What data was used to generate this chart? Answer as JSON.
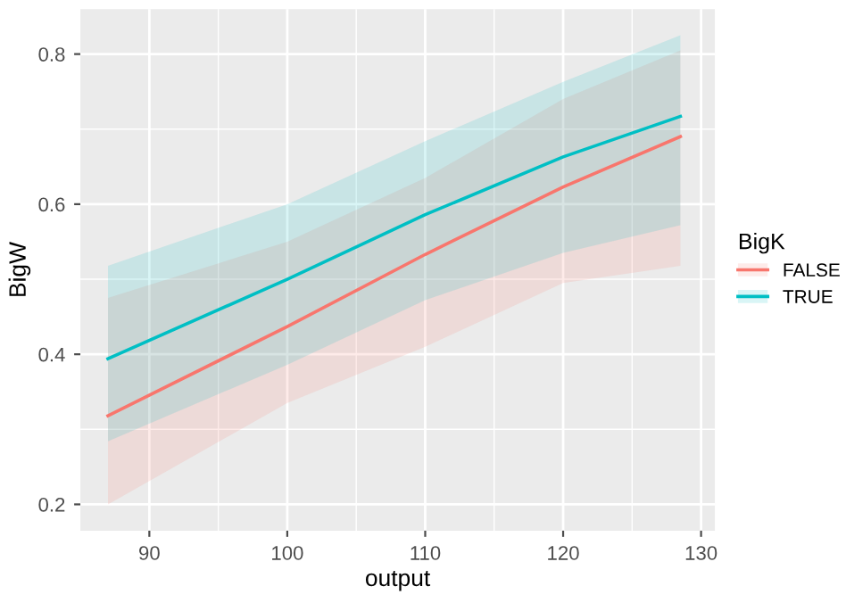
{
  "chart_data": {
    "type": "line",
    "xlabel": "output",
    "ylabel": "BigW",
    "legend_title": "BigK",
    "xlim": [
      85,
      131
    ],
    "ylim": [
      0.165,
      0.86
    ],
    "xticks": [
      90,
      100,
      110,
      120,
      130
    ],
    "yticks": [
      0.2,
      0.4,
      0.6,
      0.8
    ],
    "grid": true,
    "legend": "right",
    "marker": "none",
    "line_style": "solid",
    "series": [
      {
        "name": "FALSE",
        "color": "#f8766d",
        "x": [
          87,
          100,
          110,
          120,
          128.5
        ],
        "values": [
          0.318,
          0.437,
          0.533,
          0.623,
          0.69
        ],
        "lower": [
          0.2,
          0.335,
          0.41,
          0.495,
          0.518
        ],
        "upper": [
          0.475,
          0.55,
          0.635,
          0.74,
          0.805
        ]
      },
      {
        "name": "TRUE",
        "color": "#00bfc4",
        "x": [
          87,
          100,
          110,
          120,
          128.5
        ],
        "values": [
          0.394,
          0.5,
          0.586,
          0.663,
          0.717
        ],
        "lower": [
          0.284,
          0.386,
          0.472,
          0.535,
          0.572
        ],
        "upper": [
          0.518,
          0.6,
          0.684,
          0.763,
          0.825
        ]
      }
    ]
  }
}
